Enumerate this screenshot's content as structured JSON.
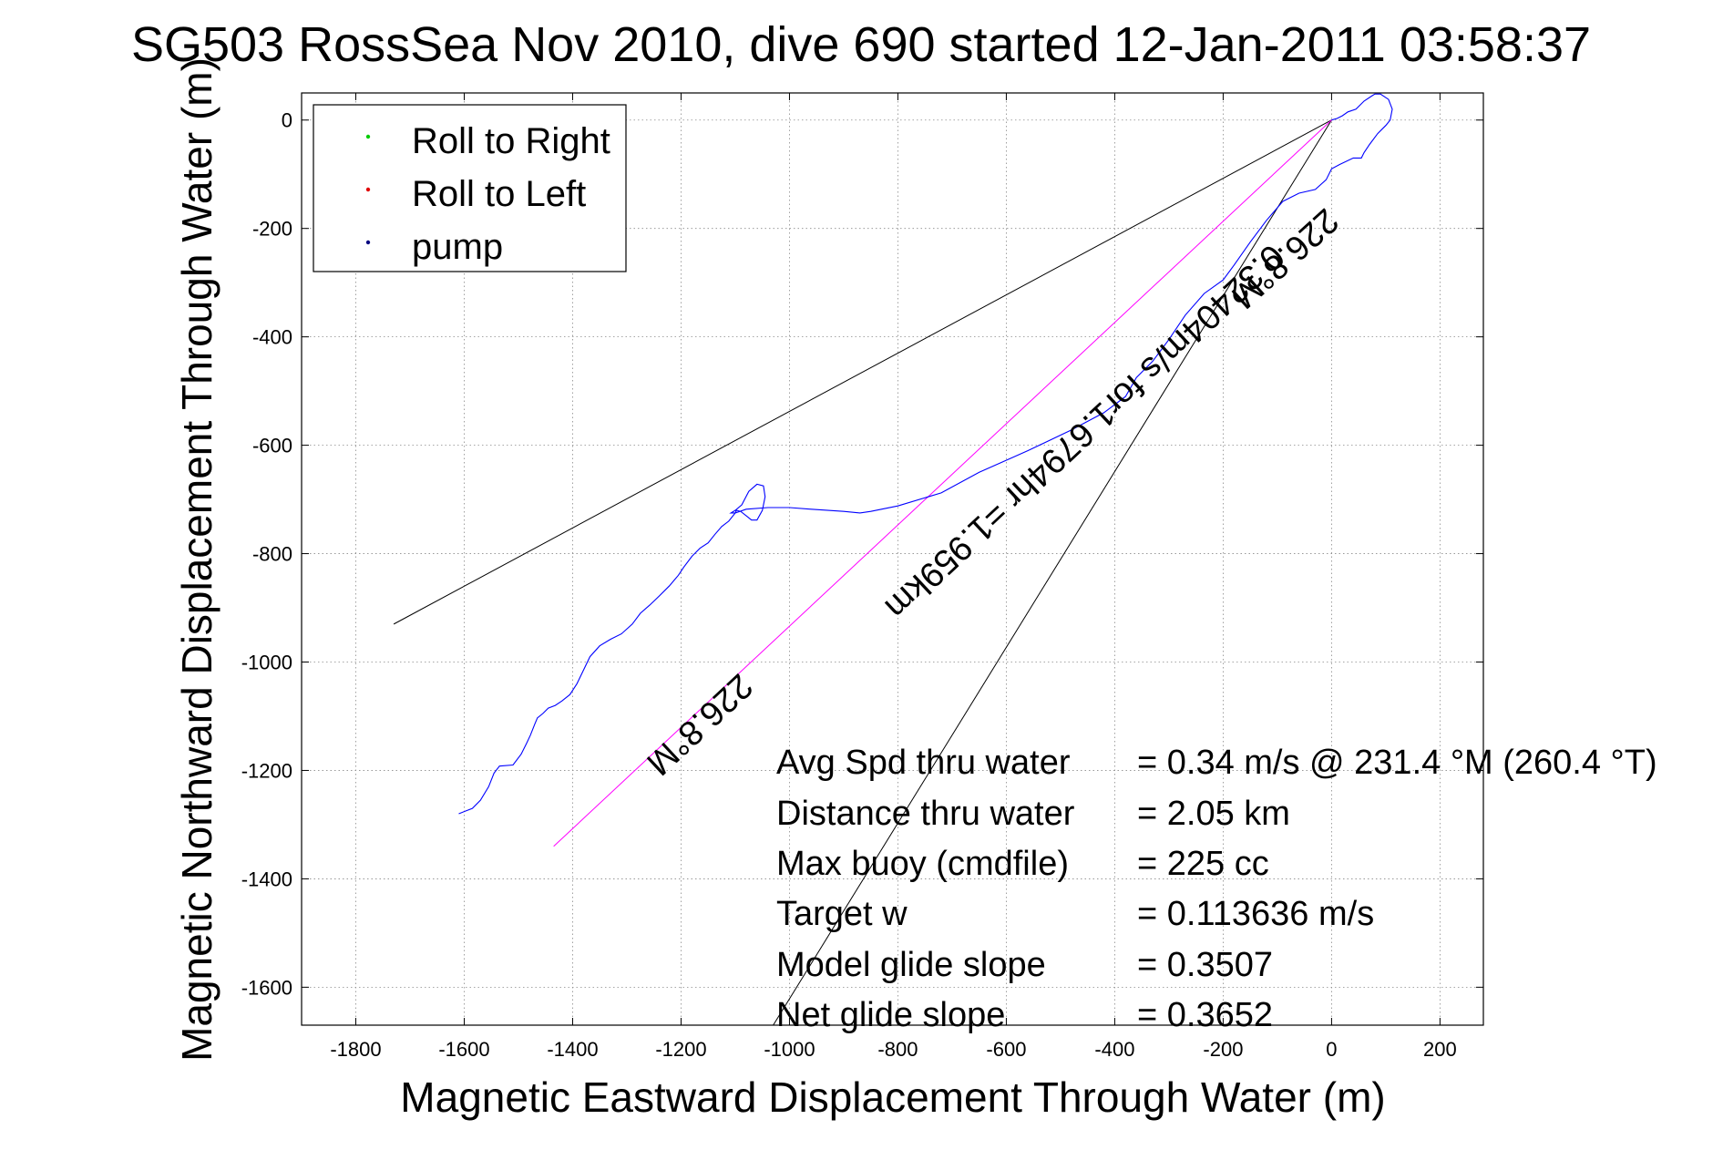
{
  "chart_data": {
    "type": "line",
    "title": "SG503 RossSea Nov 2010, dive 690 started 12-Jan-2011 03:58:37",
    "xlabel": "Magnetic Eastward Displacement Through Water (m)",
    "ylabel": "Magnetic Northward Displacement Through Water (m)",
    "xlim": [
      -1900,
      280
    ],
    "ylim": [
      -1670,
      50
    ],
    "xticks": [
      -1800,
      -1600,
      -1400,
      -1200,
      -1000,
      -800,
      -600,
      -400,
      -200,
      0,
      200
    ],
    "yticks": [
      0,
      -200,
      -400,
      -600,
      -800,
      -1000,
      -1200,
      -1400,
      -1600
    ],
    "xtick_labels": [
      "-1800",
      "-1600",
      "-1400",
      "-1200",
      "-1000",
      "-800",
      "-600",
      "-400",
      "-200",
      "0",
      "200"
    ],
    "ytick_labels": [
      "0",
      "-200",
      "-400",
      "-600",
      "-800",
      "-1000",
      "-1200",
      "-1400",
      "-1600"
    ],
    "grid": true,
    "legend_position": "top-left",
    "legend": [
      {
        "label": "Roll to Right",
        "color": "#00cc00"
      },
      {
        "label": "Roll to Left",
        "color": "#e00000"
      },
      {
        "label": "pump",
        "color": "#000080"
      }
    ],
    "series": [
      {
        "name": "",
        "color": "#0000ff",
        "x": [
          -1610,
          -1585,
          -1570,
          -1555,
          -1545,
          -1535,
          -1510,
          -1495,
          -1485,
          -1478,
          -1470,
          -1465,
          -1455,
          -1445,
          -1432,
          -1420,
          -1405,
          -1392,
          -1380,
          -1368,
          -1350,
          -1330,
          -1310,
          -1290,
          -1275,
          -1258,
          -1240,
          -1222,
          -1205,
          -1195,
          -1180,
          -1165,
          -1150,
          -1138,
          -1125,
          -1112,
          -1100,
          -1098,
          -1090,
          -1080,
          -1070,
          -1060,
          -1050,
          -1045,
          -1048,
          -1060,
          -1075,
          -1088,
          -1100,
          -1108,
          -1100,
          -1080,
          -1040,
          -1000,
          -960,
          -900,
          -870,
          -850,
          -800,
          -720,
          -650,
          -560,
          -480,
          -420,
          -380,
          -360,
          -330,
          -300,
          -270,
          -235,
          -200,
          -180,
          -150,
          -120,
          -90,
          -60,
          -30,
          -10,
          0,
          15,
          40,
          55,
          60,
          70,
          85,
          100,
          108,
          112,
          105,
          90,
          80,
          75,
          60,
          45,
          30,
          20,
          10,
          0
        ],
        "y": [
          -1280,
          -1270,
          -1255,
          -1230,
          -1205,
          -1192,
          -1190,
          -1170,
          -1150,
          -1135,
          -1115,
          -1103,
          -1095,
          -1085,
          -1080,
          -1072,
          -1060,
          -1040,
          -1015,
          -990,
          -970,
          -958,
          -948,
          -930,
          -910,
          -895,
          -878,
          -860,
          -840,
          -825,
          -805,
          -790,
          -780,
          -765,
          -750,
          -740,
          -725,
          -720,
          -722,
          -730,
          -738,
          -738,
          -720,
          -695,
          -675,
          -672,
          -685,
          -710,
          -720,
          -725,
          -725,
          -718,
          -715,
          -715,
          -718,
          -722,
          -725,
          -722,
          -712,
          -688,
          -650,
          -610,
          -572,
          -540,
          -510,
          -475,
          -445,
          -405,
          -360,
          -320,
          -295,
          -268,
          -225,
          -185,
          -150,
          -135,
          -128,
          -110,
          -90,
          -82,
          -70,
          -70,
          -60,
          -45,
          -25,
          -10,
          0,
          20,
          38,
          48,
          48,
          45,
          35,
          20,
          15,
          8,
          3,
          0
        ]
      }
    ],
    "reference_lines": [
      {
        "color": "#000000",
        "x": [
          -1730,
          0
        ],
        "y": [
          -930,
          0
        ]
      },
      {
        "color": "#000000",
        "x": [
          -1030,
          0
        ],
        "y": [
          -1670,
          0
        ]
      },
      {
        "color": "#ff00ff",
        "x": [
          -1435,
          0
        ],
        "y": [
          -1340,
          0
        ]
      }
    ],
    "annotations": [
      {
        "text": "226.8°M",
        "x": -100,
        "y": -240,
        "rotation": 138
      },
      {
        "text": "0.32404m/s for1.6794hr =1.959km",
        "x": -470,
        "y": -560,
        "rotation": 137
      },
      {
        "text": "226.8°M",
        "x": -1180,
        "y": -1100,
        "rotation": 137
      }
    ],
    "stats": [
      {
        "label": "Avg Spd thru water",
        "value": "=  0.34 m/s @ 231.4 °M (260.4 °T)"
      },
      {
        "label": "Distance thru water",
        "value": "=  2.05 km"
      },
      {
        "label": "Max buoy (cmdfile)",
        "value": "= 225 cc"
      },
      {
        "label": "Target w",
        "value": "= 0.113636 m/s"
      },
      {
        "label": "Model glide slope",
        "value": "= 0.3507"
      },
      {
        "label": "Net glide slope",
        "value": "= 0.3652"
      }
    ]
  }
}
